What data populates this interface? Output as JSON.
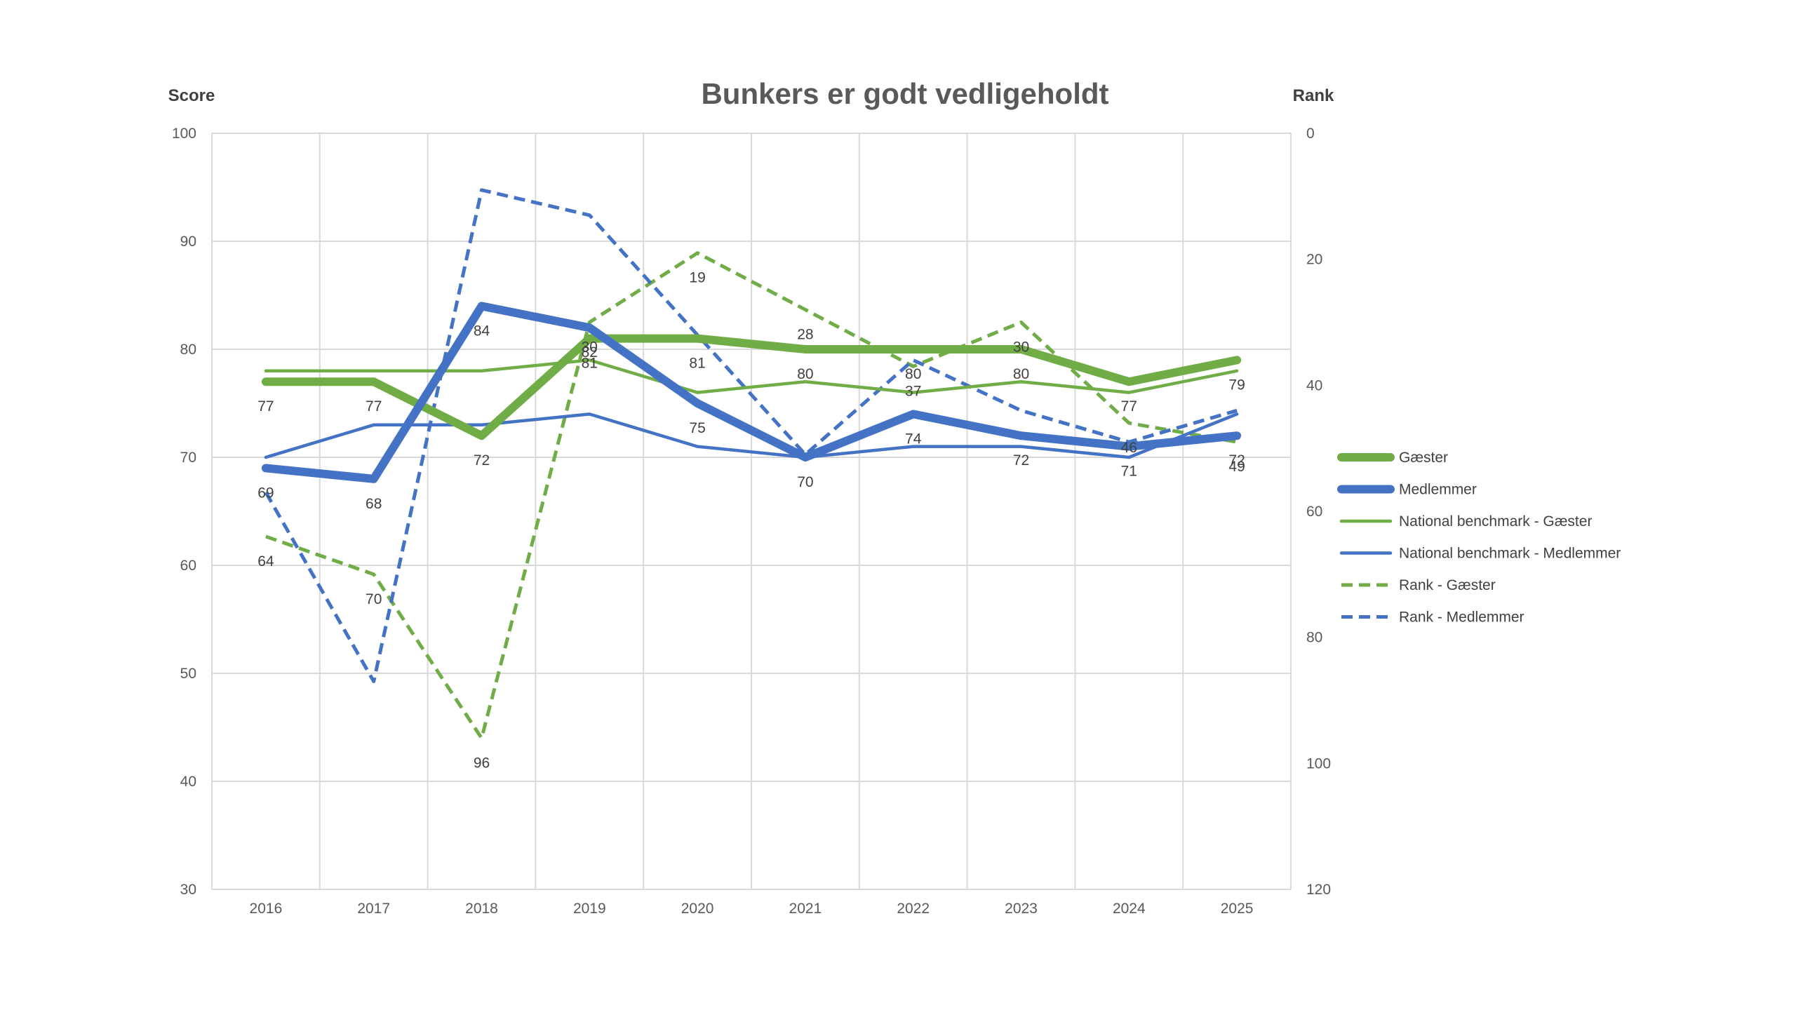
{
  "chart_data": {
    "type": "line",
    "title": "Bunkers er godt vedligeholdt",
    "ylabel": "Score",
    "y2label": "Rank",
    "categories": [
      "2016",
      "2017",
      "2018",
      "2019",
      "2020",
      "2021",
      "2022",
      "2023",
      "2024",
      "2025"
    ],
    "ylim": [
      30,
      100
    ],
    "y_ticks": [
      30,
      40,
      50,
      60,
      70,
      80,
      90,
      100
    ],
    "y2lim": [
      0,
      120
    ],
    "y2_reversed": true,
    "y2_ticks": [
      0,
      20,
      40,
      60,
      80,
      100,
      120
    ],
    "grid": true,
    "legend_position": "right",
    "series": [
      {
        "name": "Gæster",
        "axis": "score",
        "style": "thick",
        "color": "#70AD47",
        "values": [
          77,
          77,
          72,
          81,
          81,
          80,
          80,
          80,
          77,
          79
        ],
        "labels": [
          "77",
          "77",
          "72",
          "81",
          "81",
          "80",
          "80",
          "80",
          "77",
          "79"
        ]
      },
      {
        "name": "Medlemmer",
        "axis": "score",
        "style": "thick",
        "color": "#4472C4",
        "values": [
          69,
          68,
          84,
          82,
          75,
          70,
          74,
          72,
          71,
          72
        ],
        "labels": [
          "69",
          "68",
          "84",
          "82",
          "75",
          "70",
          "74",
          "72",
          "71",
          "72"
        ]
      },
      {
        "name": "National benchmark - Gæster",
        "axis": "score",
        "style": "thin",
        "color": "#70AD47",
        "values": [
          78,
          78,
          78,
          79,
          76,
          77,
          76,
          77,
          76,
          78
        ]
      },
      {
        "name": "National benchmark - Medlemmer",
        "axis": "score",
        "style": "thin",
        "color": "#4472C4",
        "values": [
          70,
          73,
          73,
          74,
          71,
          70,
          71,
          71,
          70,
          74
        ]
      },
      {
        "name": "Rank - Gæster",
        "axis": "rank",
        "style": "dashed",
        "color": "#70AD47",
        "values": [
          64,
          70,
          96,
          30,
          19,
          28,
          37,
          30,
          46,
          49
        ],
        "labels": [
          "64",
          "70",
          "96",
          "30",
          "19",
          "28",
          "37",
          "30",
          "46",
          "49"
        ]
      },
      {
        "name": "Rank - Medlemmer",
        "axis": "rank",
        "style": "dashed",
        "color": "#4472C4",
        "values": [
          57,
          87,
          9,
          13,
          32,
          51,
          36,
          44,
          49,
          44
        ],
        "labels": [
          "",
          "",
          "",
          "",
          "",
          "",
          "",
          "",
          "",
          ""
        ]
      }
    ]
  }
}
